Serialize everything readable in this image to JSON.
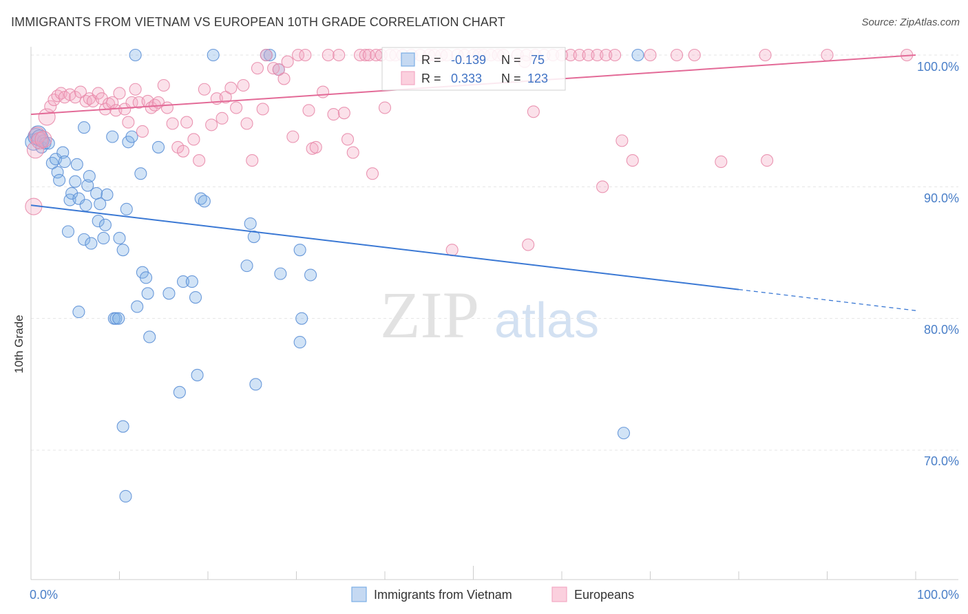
{
  "chart_data": {
    "type": "scatter",
    "title": "IMMIGRANTS FROM VIETNAM VS EUROPEAN 10TH GRADE CORRELATION CHART",
    "source": "Source: ZipAtlas.com",
    "xlabel": "",
    "ylabel": "10th Grade",
    "xlim": [
      0,
      100
    ],
    "ylim": [
      60.5,
      102.5
    ],
    "x_tick_labels": [
      "0.0%",
      "100.0%"
    ],
    "y_ticks": [
      {
        "value": 100,
        "label": "100.0%"
      },
      {
        "value": 90,
        "label": "90.0%"
      },
      {
        "value": 80,
        "label": "80.0%"
      },
      {
        "value": 70,
        "label": "70.0%"
      }
    ],
    "watermark": {
      "zip": "ZIP",
      "atlas": "atlas"
    },
    "legend": [
      "Immigrants from Vietnam",
      "Europeans"
    ],
    "stats": [
      {
        "r_label": "R =",
        "r_value": "-0.139",
        "n_label": "N =",
        "n_value": "75"
      },
      {
        "r_label": "R =",
        "r_value": "0.333",
        "n_label": "N =",
        "n_value": "123"
      }
    ],
    "series": [
      {
        "name": "Immigrants from Vietnam",
        "color": "#7aaee6",
        "stroke": "#5b8fd6",
        "trend": {
          "x0": 0,
          "y0": 88.6,
          "x1": 80,
          "y1": 82.2,
          "dash_to_x": 100,
          "dash_to_y": 80.6,
          "color": "#3a78d4"
        },
        "points": [
          [
            0.3,
            93.4
          ],
          [
            0.6,
            93.8
          ],
          [
            0.8,
            94.0
          ],
          [
            1.0,
            93.7
          ],
          [
            1.2,
            93.0
          ],
          [
            1.4,
            93.5
          ],
          [
            1.6,
            93.3
          ],
          [
            2.0,
            93.3
          ],
          [
            2.4,
            91.8
          ],
          [
            2.8,
            92.1
          ],
          [
            3.0,
            91.1
          ],
          [
            3.2,
            90.5
          ],
          [
            3.6,
            92.6
          ],
          [
            3.8,
            91.9
          ],
          [
            4.4,
            89.0
          ],
          [
            4.6,
            89.5
          ],
          [
            4.2,
            86.6
          ],
          [
            5.0,
            90.4
          ],
          [
            5.2,
            91.7
          ],
          [
            5.4,
            89.1
          ],
          [
            6.0,
            86.0
          ],
          [
            6.2,
            88.6
          ],
          [
            6.4,
            90.1
          ],
          [
            6.8,
            85.7
          ],
          [
            6.6,
            90.8
          ],
          [
            7.4,
            89.5
          ],
          [
            7.6,
            87.4
          ],
          [
            8.2,
            86.1
          ],
          [
            7.8,
            88.7
          ],
          [
            8.6,
            89.4
          ],
          [
            8.4,
            87.1
          ],
          [
            9.2,
            93.8
          ],
          [
            11.0,
            93.4
          ],
          [
            11.4,
            93.8
          ],
          [
            9.4,
            80.0
          ],
          [
            9.6,
            80.0
          ],
          [
            9.9,
            80.0
          ],
          [
            12.0,
            80.9
          ],
          [
            10.0,
            86.1
          ],
          [
            10.4,
            85.2
          ],
          [
            10.8,
            88.3
          ],
          [
            12.4,
            91.0
          ],
          [
            12.6,
            83.5
          ],
          [
            13.0,
            83.1
          ],
          [
            13.2,
            81.9
          ],
          [
            14.4,
            93.0
          ],
          [
            13.4,
            78.6
          ],
          [
            15.6,
            81.9
          ],
          [
            17.2,
            82.8
          ],
          [
            18.2,
            82.8
          ],
          [
            18.6,
            81.6
          ],
          [
            19.2,
            89.1
          ],
          [
            19.6,
            88.9
          ],
          [
            16.8,
            74.4
          ],
          [
            18.8,
            75.7
          ],
          [
            10.4,
            71.8
          ],
          [
            10.7,
            66.5
          ],
          [
            5.4,
            80.5
          ],
          [
            24.4,
            84.0
          ],
          [
            24.8,
            87.2
          ],
          [
            25.2,
            86.2
          ],
          [
            25.4,
            75.0
          ],
          [
            28.2,
            83.4
          ],
          [
            30.6,
            80.0
          ],
          [
            28.0,
            98.9
          ],
          [
            30.4,
            85.2
          ],
          [
            31.6,
            83.3
          ],
          [
            26.6,
            100.0
          ],
          [
            11.8,
            100.0
          ],
          [
            20.6,
            100.0
          ],
          [
            67.0,
            71.3
          ],
          [
            68.6,
            100.0
          ],
          [
            30.4,
            78.2
          ],
          [
            27.0,
            100.0
          ],
          [
            6.0,
            94.5
          ]
        ]
      },
      {
        "name": "Europeans",
        "color": "#f4a8c3",
        "stroke": "#e889aa",
        "trend": {
          "x0": 0,
          "y0": 95.5,
          "x1": 100,
          "y1": 100.0,
          "color": "#e36a97"
        },
        "points": [
          [
            0.3,
            88.5
          ],
          [
            0.5,
            92.8
          ],
          [
            0.7,
            93.9
          ],
          [
            1.0,
            93.5
          ],
          [
            1.4,
            93.6
          ],
          [
            1.8,
            95.3
          ],
          [
            2.2,
            96.1
          ],
          [
            2.6,
            96.6
          ],
          [
            3.0,
            96.9
          ],
          [
            3.4,
            97.1
          ],
          [
            3.8,
            96.8
          ],
          [
            4.4,
            97.0
          ],
          [
            5.0,
            96.8
          ],
          [
            5.6,
            97.2
          ],
          [
            6.2,
            96.5
          ],
          [
            6.6,
            96.7
          ],
          [
            7.0,
            96.5
          ],
          [
            7.6,
            97.1
          ],
          [
            8.0,
            96.7
          ],
          [
            8.4,
            95.9
          ],
          [
            8.8,
            96.3
          ],
          [
            9.2,
            96.4
          ],
          [
            9.6,
            95.8
          ],
          [
            10.0,
            97.1
          ],
          [
            10.6,
            95.9
          ],
          [
            11.0,
            94.9
          ],
          [
            11.4,
            96.4
          ],
          [
            11.8,
            97.4
          ],
          [
            12.2,
            96.4
          ],
          [
            12.6,
            94.2
          ],
          [
            13.2,
            96.5
          ],
          [
            13.6,
            96.0
          ],
          [
            14.0,
            96.2
          ],
          [
            14.4,
            96.4
          ],
          [
            15.0,
            97.7
          ],
          [
            15.4,
            96.0
          ],
          [
            16.0,
            94.8
          ],
          [
            16.6,
            93.0
          ],
          [
            17.2,
            92.7
          ],
          [
            17.6,
            94.9
          ],
          [
            18.4,
            93.6
          ],
          [
            19.0,
            92.0
          ],
          [
            19.6,
            97.4
          ],
          [
            20.4,
            94.7
          ],
          [
            21.0,
            96.7
          ],
          [
            21.6,
            95.2
          ],
          [
            22.0,
            96.8
          ],
          [
            22.6,
            97.5
          ],
          [
            23.2,
            96.0
          ],
          [
            24.0,
            97.7
          ],
          [
            24.4,
            94.8
          ],
          [
            25.0,
            92.0
          ],
          [
            25.6,
            99.0
          ],
          [
            26.2,
            95.9
          ],
          [
            26.6,
            100.0
          ],
          [
            27.4,
            99.0
          ],
          [
            28.0,
            98.9
          ],
          [
            28.6,
            98.2
          ],
          [
            29.0,
            99.5
          ],
          [
            29.6,
            93.8
          ],
          [
            30.2,
            100.0
          ],
          [
            31.0,
            100.0
          ],
          [
            31.4,
            95.8
          ],
          [
            31.8,
            92.9
          ],
          [
            32.2,
            93.0
          ],
          [
            33.0,
            97.2
          ],
          [
            33.6,
            100.0
          ],
          [
            34.2,
            95.5
          ],
          [
            34.8,
            100.0
          ],
          [
            35.4,
            95.6
          ],
          [
            35.8,
            93.6
          ],
          [
            36.4,
            92.6
          ],
          [
            37.2,
            100.0
          ],
          [
            37.8,
            100.0
          ],
          [
            38.2,
            100.0
          ],
          [
            38.6,
            91.0
          ],
          [
            39.0,
            100.0
          ],
          [
            39.6,
            100.0
          ],
          [
            40.0,
            96.0
          ],
          [
            40.6,
            100.0
          ],
          [
            41.2,
            100.0
          ],
          [
            42.0,
            100.0
          ],
          [
            43.0,
            100.0
          ],
          [
            44.0,
            100.0
          ],
          [
            45.0,
            100.0
          ],
          [
            45.6,
            100.0
          ],
          [
            46.4,
            100.0
          ],
          [
            47.0,
            100.0
          ],
          [
            47.6,
            85.2
          ],
          [
            48.2,
            100.0
          ],
          [
            49.0,
            100.0
          ],
          [
            50.0,
            100.0
          ],
          [
            50.6,
            100.0
          ],
          [
            51.2,
            100.0
          ],
          [
            52.0,
            100.0
          ],
          [
            52.8,
            100.0
          ],
          [
            53.4,
            100.0
          ],
          [
            55.0,
            100.0
          ],
          [
            56.0,
            100.0
          ],
          [
            57.0,
            100.0
          ],
          [
            58.0,
            100.0
          ],
          [
            59.0,
            100.0
          ],
          [
            60.0,
            100.0
          ],
          [
            61.0,
            100.0
          ],
          [
            62.0,
            100.0
          ],
          [
            63.0,
            100.0
          ],
          [
            64.0,
            100.0
          ],
          [
            65.0,
            100.0
          ],
          [
            66.0,
            100.0
          ],
          [
            70.0,
            100.0
          ],
          [
            73.0,
            100.0
          ],
          [
            75.0,
            100.0
          ],
          [
            83.0,
            100.0
          ],
          [
            90.0,
            100.0
          ],
          [
            99.0,
            100.0
          ],
          [
            55.8,
            99.5
          ],
          [
            56.2,
            85.6
          ],
          [
            56.8,
            95.7
          ],
          [
            64.6,
            90.0
          ],
          [
            66.8,
            93.5
          ],
          [
            68.0,
            92.0
          ],
          [
            78.0,
            91.9
          ],
          [
            83.2,
            92.0
          ]
        ]
      }
    ]
  }
}
